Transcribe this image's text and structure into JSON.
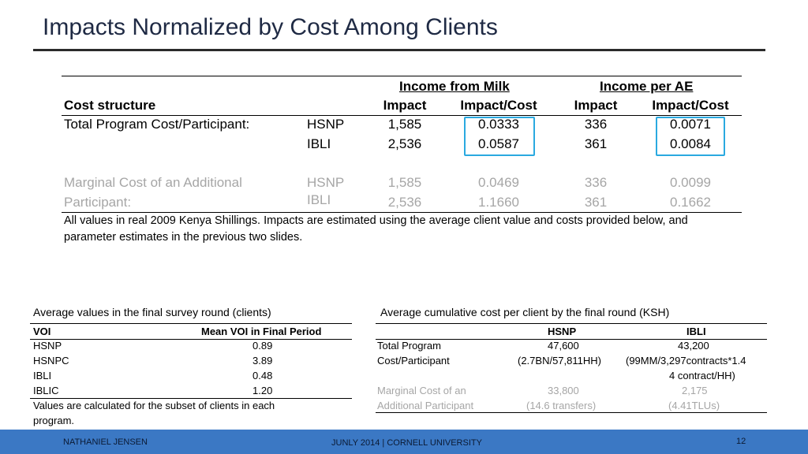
{
  "slide": {
    "title": "Impacts Normalized by Cost Among Clients"
  },
  "main_table": {
    "group_headers": [
      "Income from Milk",
      "Income per AE"
    ],
    "row_header": "Cost structure",
    "column_headers": [
      "Impact",
      "Impact/Cost",
      "Impact",
      "Impact/Cost"
    ],
    "total_label": "Total Program Cost/Participant:",
    "marginal_label_line1": "Marginal Cost of an Additional",
    "marginal_label_line2": "Participant:",
    "rows": [
      {
        "program": "HSNP",
        "v1": "1,585",
        "v2": "0.0333",
        "v3": "336",
        "v4": "0.0071"
      },
      {
        "program": "IBLI",
        "v1": "2,536",
        "v2": "0.0587",
        "v3": "361",
        "v4": "0.0084"
      },
      {
        "program": "HSNP",
        "v1": "1,585",
        "v2": "0.0469",
        "v3": "336",
        "v4": "0.0099"
      },
      {
        "program": "IBLI",
        "v1": "2,536",
        "v2": "1.1660",
        "v3": "361",
        "v4": "0.1662"
      }
    ],
    "note_line1": "All values in real 2009 Kenya Shillings. Impacts are estimated using the average client value and costs provided below, and",
    "note_line2": "parameter estimates in the previous two slides.",
    "highlight_color": "#2aa9e0"
  },
  "voi_table": {
    "caption": "Average values in the final survey round (clients)",
    "headers": [
      "VOI",
      "Mean VOI in Final Period"
    ],
    "rows": [
      {
        "name": "HSNP",
        "value": "0.89"
      },
      {
        "name": "HSNPC",
        "value": "3.89"
      },
      {
        "name": "IBLI",
        "value": "0.48"
      },
      {
        "name": "IBLIC",
        "value": "1.20"
      }
    ],
    "note_line1": "Values are calculated for the subset of clients in each",
    "note_line2": "program."
  },
  "cost_table": {
    "caption": "Average cumulative cost per client by the final round (KSH)",
    "headers": [
      "HSNP",
      "IBLI"
    ],
    "total_label_line1": "Total Program",
    "total_label_line2": "Cost/Participant",
    "total_hsnp_line1": "47,600",
    "total_hsnp_line2": "(2.7BN/57,811HH)",
    "total_ibli_line1": "43,200",
    "total_ibli_line2": "(99MM/3,297contracts*1.4",
    "total_ibli_line3": "4 contract/HH)",
    "marginal_label_line1": "Marginal Cost of an",
    "marginal_label_line2": "Additional Participant",
    "marginal_hsnp_line1": "33,800",
    "marginal_hsnp_line2": "(14.6 transfers)",
    "marginal_ibli_line1": "2,175",
    "marginal_ibli_line2": "(4.41TLUs)"
  },
  "footer": {
    "author": "NATHANIEL JENSEN",
    "center": "JUNLY 2014 | CORNELL UNIVERSITY",
    "page": "12",
    "color": "#3b78c4"
  }
}
